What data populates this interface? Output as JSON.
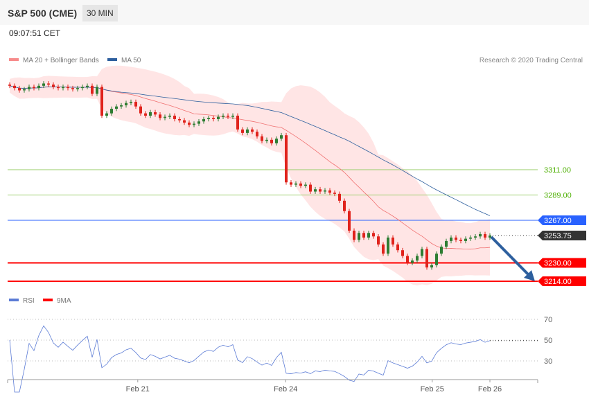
{
  "header": {
    "title": "S&P 500 (CME)",
    "timeframe": "30 MIN",
    "time": "09:07:51 CET"
  },
  "legend": {
    "ma20": "MA 20 + Bollinger Bands",
    "ma50": "MA 50",
    "credit": "Research © 2020 Trading Central",
    "rsi": "RSI",
    "rsi_ma": "9MA"
  },
  "colors": {
    "up": "#2e7d32",
    "down": "#e0231c",
    "ma20": "#f07070",
    "ma50": "#2d5f9e",
    "band": "#ffe0e0",
    "resistance": "#9acd6a",
    "pivot": "#2962ff",
    "support": "#ff0000",
    "last": "#333333",
    "rsi": "#5b7bd5"
  },
  "chart_data": {
    "type": "candlestick",
    "closes": [
      3384,
      3382,
      3380,
      3381,
      3383,
      3382,
      3384,
      3386,
      3385,
      3383,
      3382,
      3383,
      3382,
      3381,
      3382,
      3383,
      3384,
      3377,
      3383,
      3358,
      3360,
      3364,
      3366,
      3367,
      3369,
      3370,
      3366,
      3360,
      3358,
      3361,
      3359,
      3356,
      3357,
      3358,
      3355,
      3354,
      3352,
      3350,
      3351,
      3353,
      3355,
      3356,
      3355,
      3357,
      3358,
      3357,
      3358,
      3346,
      3343,
      3346,
      3344,
      3340,
      3336,
      3337,
      3334,
      3338,
      3341,
      3300,
      3298,
      3299,
      3297,
      3298,
      3292,
      3294,
      3292,
      3293,
      3291,
      3290,
      3284,
      3275,
      3258,
      3250,
      3256,
      3252,
      3256,
      3253,
      3246,
      3238,
      3252,
      3246,
      3241,
      3236,
      3230,
      3232,
      3236,
      3242,
      3226,
      3228,
      3238,
      3244,
      3249,
      3252,
      3250,
      3249,
      3251,
      3252,
      3253,
      3255,
      3252,
      3253.75
    ],
    "levels": [
      {
        "label": "3311.00",
        "value": 3311,
        "kind": "resistance"
      },
      {
        "label": "3289.00",
        "value": 3289,
        "kind": "resistance"
      },
      {
        "label": "3267.00",
        "value": 3267,
        "kind": "pivot"
      },
      {
        "label": "3253.75",
        "value": 3253.75,
        "kind": "last"
      },
      {
        "label": "3230.00",
        "value": 3230,
        "kind": "support"
      },
      {
        "label": "3214.00",
        "value": 3214,
        "kind": "support"
      }
    ],
    "x_ticks": [
      {
        "label": "Feb 21",
        "bar": 26.4
      },
      {
        "label": "Feb 24",
        "bar": 56.9
      },
      {
        "label": "Feb 25",
        "bar": 87.1
      },
      {
        "label": "Feb 26",
        "bar": 99
      }
    ],
    "rsi_ticks": [
      {
        "label": "70",
        "value": 70
      },
      {
        "label": "50",
        "value": 50
      },
      {
        "label": "30",
        "value": 30
      }
    ],
    "forecast": "down"
  }
}
